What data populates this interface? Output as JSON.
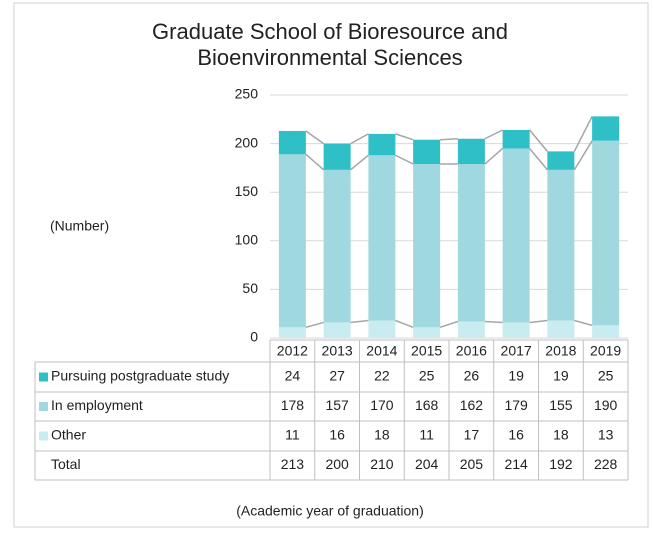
{
  "chart_data": {
    "type": "stacked_bar",
    "title": [
      "Graduate School of Bioresource and",
      "Bioenvironmental Sciences"
    ],
    "y_label": "(Number)",
    "x_label": "(Academic year of graduation)",
    "categories": [
      "2012",
      "2013",
      "2014",
      "2015",
      "2016",
      "2017",
      "2018",
      "2019"
    ],
    "series": [
      {
        "name": "Pursuing postgraduate study",
        "color": "#2fbfc6",
        "values": [
          24,
          27,
          22,
          25,
          26,
          19,
          19,
          25
        ]
      },
      {
        "name": "In employment",
        "color": "#9fd9df",
        "values": [
          178,
          157,
          170,
          168,
          162,
          179,
          155,
          190
        ]
      },
      {
        "name": "Other",
        "color": "#c9ecf1",
        "values": [
          11,
          16,
          18,
          11,
          17,
          16,
          18,
          13
        ]
      }
    ],
    "total_label": "Total",
    "totals": [
      213,
      200,
      210,
      204,
      205,
      214,
      192,
      228
    ],
    "ylim": [
      0,
      250
    ],
    "yticks": [
      0,
      50,
      100,
      150,
      200,
      250
    ],
    "grid": true
  }
}
